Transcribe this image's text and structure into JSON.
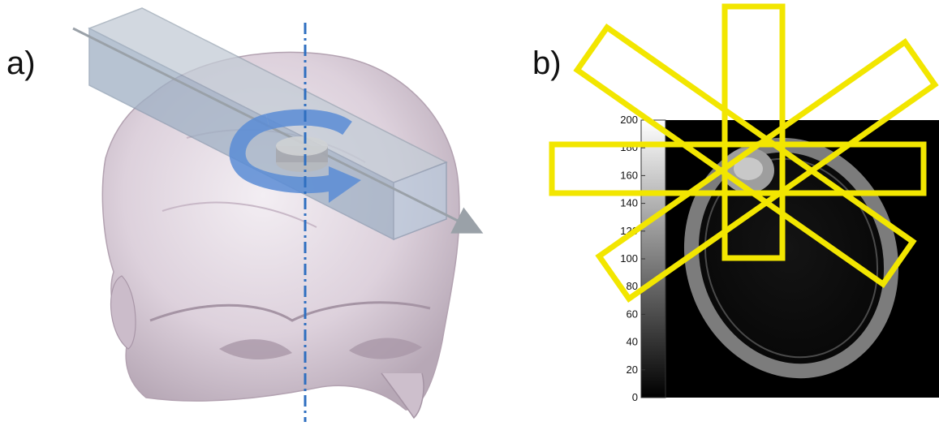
{
  "panel_a": {
    "label": "a)"
  },
  "panel_b": {
    "label": "b)",
    "colorbar": {
      "ticks": [
        "0",
        "20",
        "40",
        "60",
        "80",
        "100",
        "120",
        "140",
        "160",
        "180",
        "200"
      ]
    }
  },
  "colors": {
    "highlight": "#f2e600",
    "rotation_arrow": "#5b8dd6",
    "axis_line": "#2f6fc0"
  }
}
